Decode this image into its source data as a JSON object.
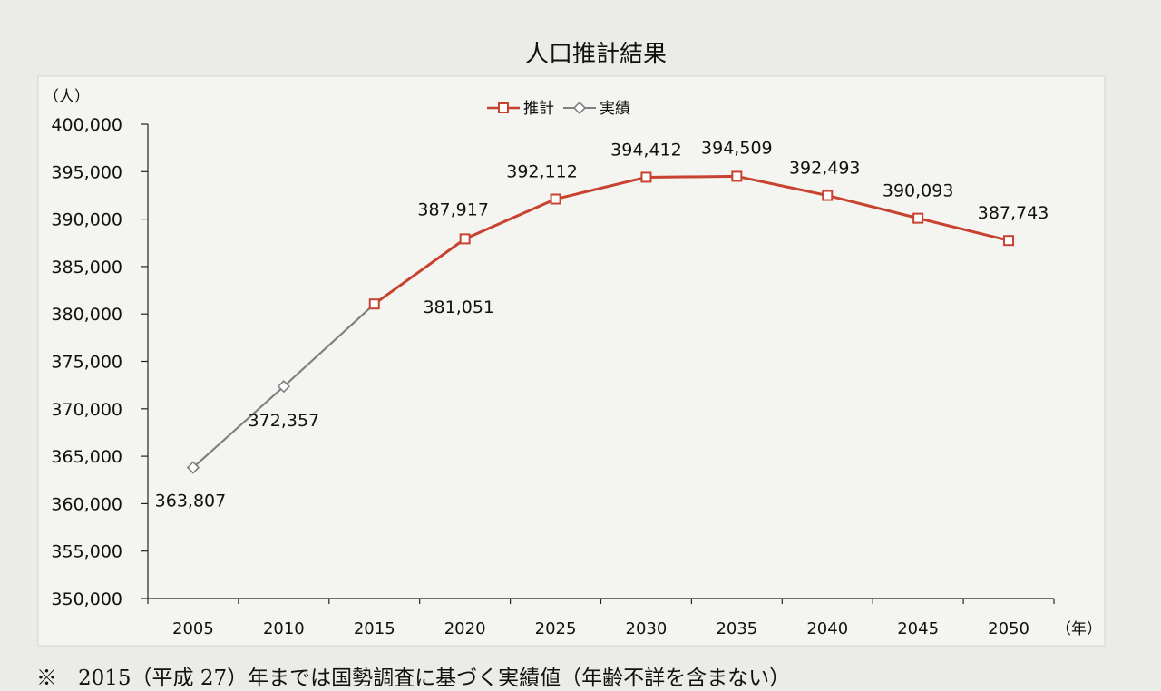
{
  "chart_data": {
    "type": "line",
    "title": "人口推計結果",
    "ylabel": "（人）",
    "xlabel": "（年）",
    "categories": [
      "2005",
      "2010",
      "2015",
      "2020",
      "2025",
      "2030",
      "2035",
      "2040",
      "2045",
      "2050"
    ],
    "y_ticks": [
      "400,000",
      "395,000",
      "390,000",
      "385,000",
      "380,000",
      "375,000",
      "370,000",
      "365,000",
      "360,000",
      "355,000",
      "350,000"
    ],
    "ylim": [
      350000,
      400000
    ],
    "legend_position": "top-center",
    "grid": false,
    "series": [
      {
        "name": "推計",
        "marker": "square",
        "color": "#c8432f",
        "x": [
          "2015",
          "2020",
          "2025",
          "2030",
          "2035",
          "2040",
          "2045",
          "2050"
        ],
        "values": [
          381051,
          387917,
          392112,
          394412,
          394509,
          392493,
          390093,
          387743
        ]
      },
      {
        "name": "実績",
        "marker": "diamond",
        "color": "#808080",
        "x": [
          "2005",
          "2010",
          "2015"
        ],
        "values": [
          363807,
          372357,
          381051
        ]
      }
    ],
    "data_labels": [
      {
        "x": "2005",
        "text": "363,807"
      },
      {
        "x": "2010",
        "text": "372,357"
      },
      {
        "x": "2015",
        "text": "381,051"
      },
      {
        "x": "2020",
        "text": "387,917"
      },
      {
        "x": "2025",
        "text": "392,112"
      },
      {
        "x": "2030",
        "text": "394,412"
      },
      {
        "x": "2035",
        "text": "394,509"
      },
      {
        "x": "2040",
        "text": "392,493"
      },
      {
        "x": "2045",
        "text": "390,093"
      },
      {
        "x": "2050",
        "text": "387,743"
      }
    ]
  },
  "footnote": "※　2015（平成 27）年までは国勢調査に基づく実績値（年齢不詳を含まない）"
}
